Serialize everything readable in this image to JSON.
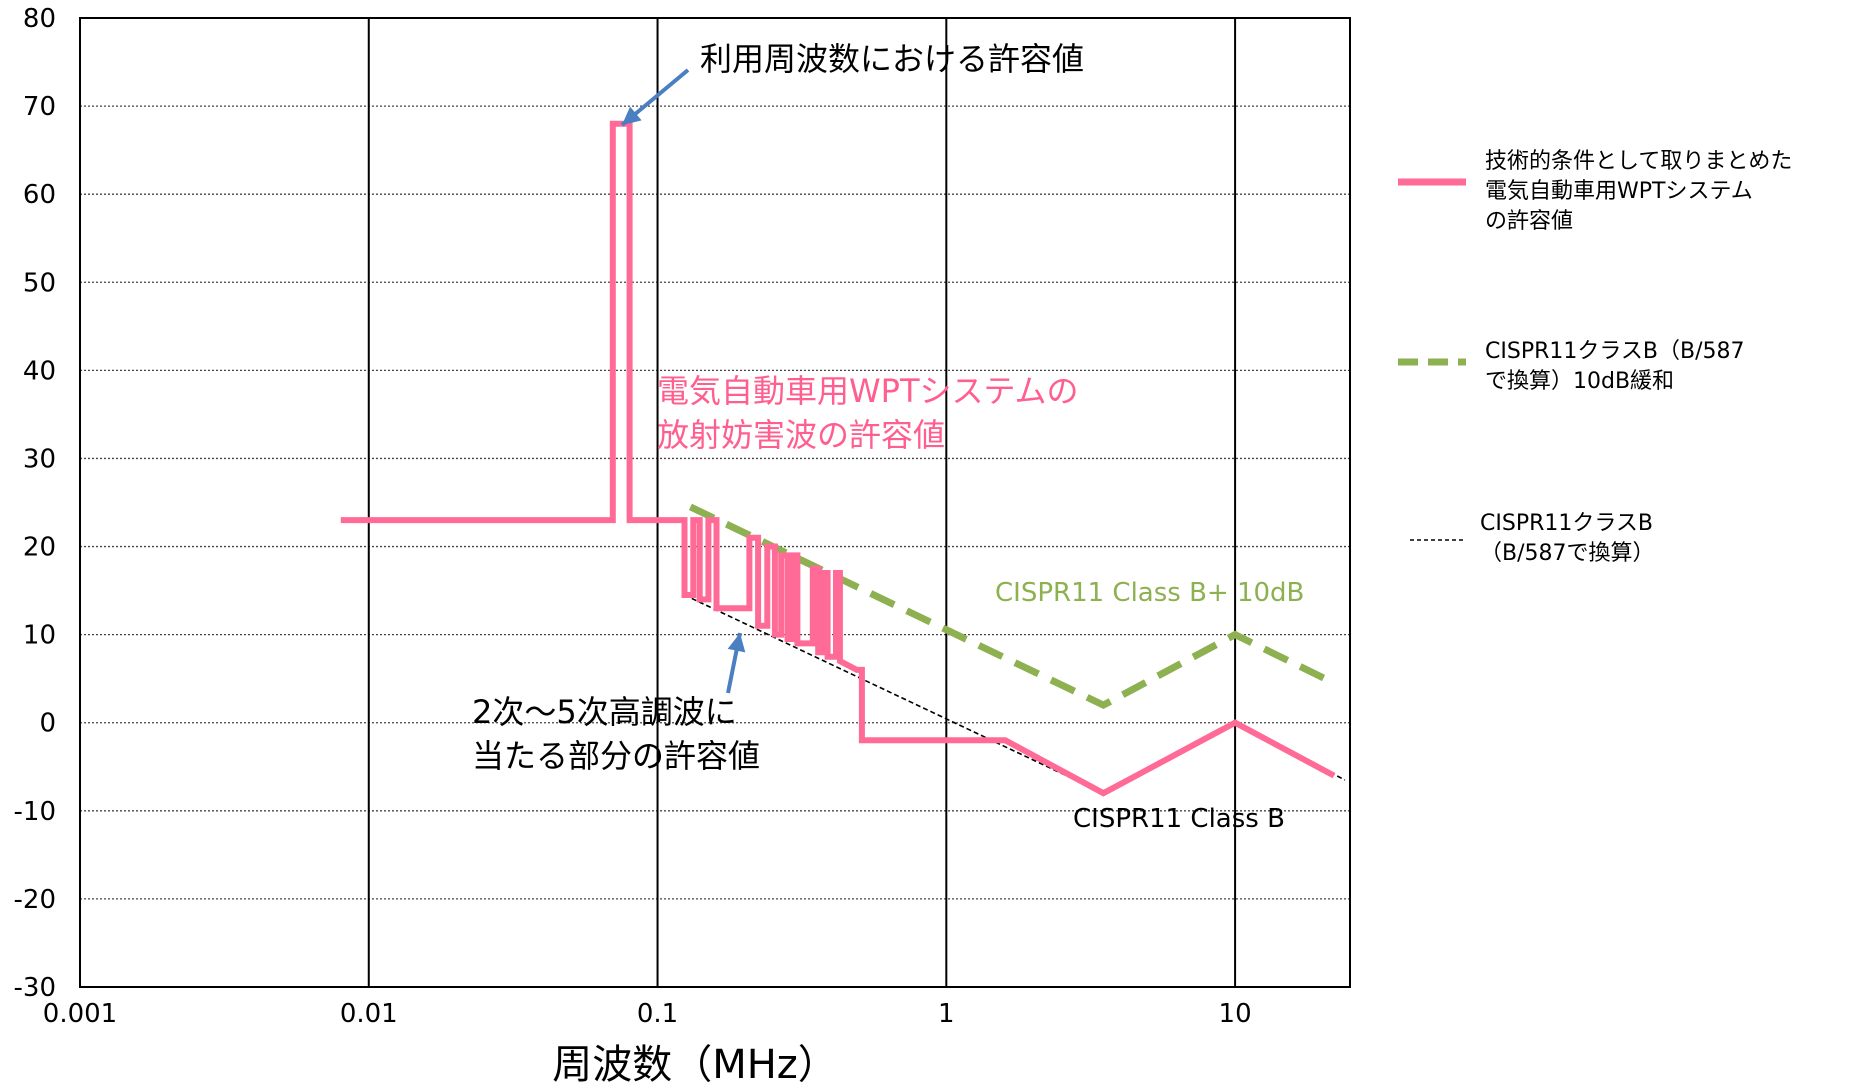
{
  "chart_data": {
    "type": "line",
    "xscale": "log",
    "xlim": [
      0.001,
      25
    ],
    "ylim": [
      -30,
      80
    ],
    "xticks": [
      "0.001",
      "0.01",
      "0.1",
      "1",
      "10"
    ],
    "yticks": [
      "80",
      "70",
      "60",
      "50",
      "40",
      "30",
      "20",
      "10",
      "0",
      "-10",
      "-20",
      "-30"
    ],
    "xlabel": "周波数（MHz）",
    "ylabel": "",
    "grid": true,
    "legend_position": "right",
    "series": [
      {
        "name": "技術的条件として取りまとめた電気自動車用WPTシステムの許容値",
        "legend_lines": [
          "技術的条件として取りまとめた",
          "電気自動車用WPTシステム",
          "の許容値"
        ],
        "color": "#ff6a96",
        "style": "solid-thick",
        "points": [
          [
            0.008,
            23
          ],
          [
            0.07,
            23
          ],
          [
            0.07,
            68
          ],
          [
            0.08,
            68
          ],
          [
            0.08,
            23
          ],
          [
            0.124,
            23
          ],
          [
            0.124,
            14.5
          ],
          [
            0.133,
            14.5
          ],
          [
            0.133,
            23
          ],
          [
            0.14,
            23
          ],
          [
            0.14,
            14
          ],
          [
            0.15,
            14
          ],
          [
            0.15,
            23
          ],
          [
            0.16,
            23
          ],
          [
            0.16,
            13
          ],
          [
            0.208,
            13
          ],
          [
            0.208,
            21
          ],
          [
            0.223,
            21
          ],
          [
            0.223,
            11
          ],
          [
            0.24,
            11
          ],
          [
            0.24,
            20
          ],
          [
            0.255,
            20
          ],
          [
            0.255,
            10
          ],
          [
            0.268,
            10
          ],
          [
            0.268,
            19
          ],
          [
            0.282,
            19
          ],
          [
            0.282,
            9.5
          ],
          [
            0.292,
            9.5
          ],
          [
            0.292,
            19
          ],
          [
            0.305,
            19
          ],
          [
            0.305,
            9
          ],
          [
            0.345,
            9
          ],
          [
            0.345,
            17.5
          ],
          [
            0.36,
            17.5
          ],
          [
            0.36,
            8
          ],
          [
            0.373,
            8
          ],
          [
            0.373,
            17
          ],
          [
            0.388,
            17
          ],
          [
            0.388,
            7.5
          ],
          [
            0.415,
            7.5
          ],
          [
            0.415,
            17
          ],
          [
            0.428,
            17
          ],
          [
            0.428,
            7
          ],
          [
            0.49,
            6
          ],
          [
            0.51,
            6
          ],
          [
            0.51,
            -2
          ],
          [
            1.6,
            -2
          ],
          [
            3.5,
            -8
          ],
          [
            10,
            0
          ],
          [
            22,
            -6
          ]
        ]
      },
      {
        "name": "CISPR11クラスB（B/587で換算）10dB緩和",
        "legend_lines": [
          "CISPR11クラスB（B/587",
          "で換算）10dB緩和"
        ],
        "color": "#8db050",
        "style": "dashed-thick",
        "points": [
          [
            0.13,
            24.5
          ],
          [
            3.5,
            2
          ],
          [
            10,
            10
          ],
          [
            22,
            4.5
          ]
        ]
      },
      {
        "name": "CISPR11クラスB（B/587で換算）",
        "legend_lines": [
          "CISPR11クラスB",
          "（B/587で換算）"
        ],
        "color": "#000000",
        "style": "dashed-thin",
        "points": [
          [
            0.124,
            14.5
          ],
          [
            3.5,
            -8
          ],
          [
            10,
            0
          ],
          [
            24,
            -6.5
          ]
        ]
      }
    ],
    "annotations": [
      {
        "id": "a1",
        "text": "利用周波数における許容値",
        "color": "#000000"
      },
      {
        "id": "a2",
        "lines": [
          "電気自動車用WPTシステムの",
          "放射妨害波の許容値"
        ],
        "color": "#ff5f8f"
      },
      {
        "id": "a3",
        "text": "CISPR11 Class B+ 10dB",
        "color": "#8db050"
      },
      {
        "id": "a4",
        "lines": [
          "2次～5次高調波に",
          "当たる部分の許容値"
        ],
        "color": "#000000"
      },
      {
        "id": "a5",
        "text": "CISPR11 Class B",
        "color": "#000000"
      }
    ]
  }
}
